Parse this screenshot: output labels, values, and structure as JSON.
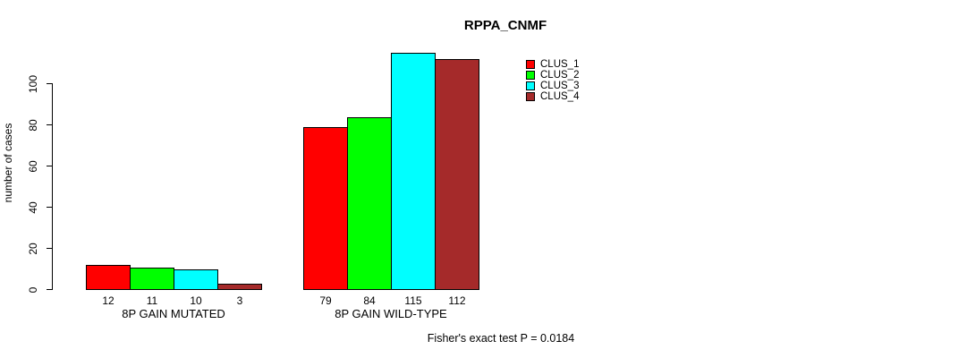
{
  "title": "RPPA_CNMF",
  "footer": "Fisher's exact test P = 0.0184",
  "y_axis": {
    "label": "number of cases",
    "ticks": [
      0,
      20,
      40,
      60,
      80,
      100
    ]
  },
  "legend": [
    {
      "label": "CLUS_1",
      "color": "#FF0000"
    },
    {
      "label": "CLUS_2",
      "color": "#00FF00"
    },
    {
      "label": "CLUS_3",
      "color": "#00FFFF"
    },
    {
      "label": "CLUS_4",
      "color": "#A52A2A"
    }
  ],
  "chart_data": {
    "type": "bar",
    "title": "RPPA_CNMF",
    "xlabel": "",
    "ylabel": "number of cases",
    "ylim": [
      0,
      115
    ],
    "yticks": [
      0,
      20,
      40,
      60,
      80,
      100
    ],
    "grid": false,
    "legend_position": "top-right",
    "categories": [
      "8P GAIN MUTATED",
      "8P GAIN WILD-TYPE"
    ],
    "series": [
      {
        "name": "CLUS_1",
        "color": "#FF0000",
        "values": [
          12,
          79
        ]
      },
      {
        "name": "CLUS_2",
        "color": "#00FF00",
        "values": [
          11,
          84
        ]
      },
      {
        "name": "CLUS_3",
        "color": "#00FFFF",
        "values": [
          10,
          115
        ]
      },
      {
        "name": "CLUS_4",
        "color": "#A52A2A",
        "values": [
          3,
          112
        ]
      }
    ],
    "bar_value_labels": [
      [
        12,
        11,
        10,
        3
      ],
      [
        79,
        84,
        115,
        112
      ]
    ],
    "annotation": "Fisher's exact test P = 0.0184"
  }
}
